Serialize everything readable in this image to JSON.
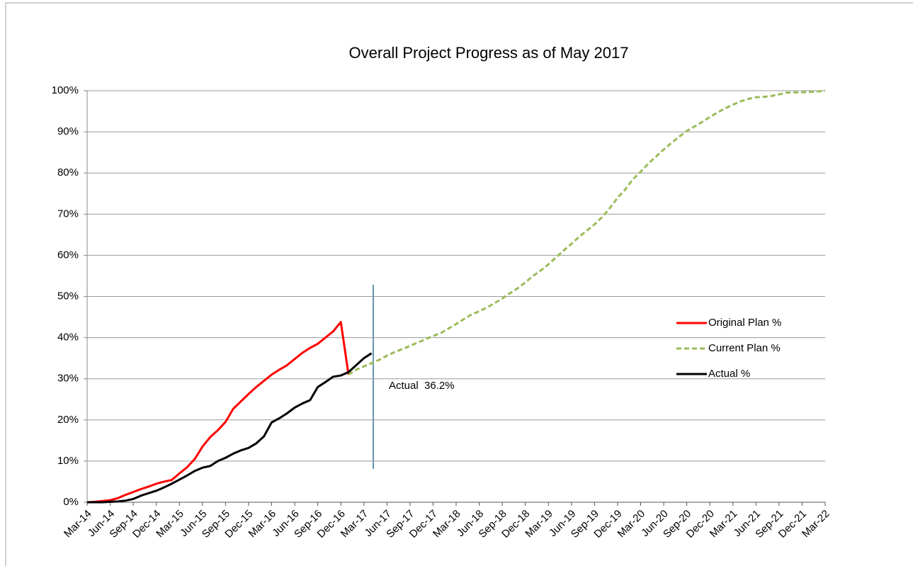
{
  "chart_data": {
    "type": "line",
    "title": "Overall Project Progress as of May 2017",
    "categories": [
      "Mar-14",
      null,
      null,
      "Jun-14",
      null,
      null,
      "Sep-14",
      null,
      null,
      "Dec-14",
      null,
      null,
      "Mar-15",
      null,
      null,
      "Jun-15",
      null,
      null,
      "Sep-15",
      null,
      null,
      "Dec-15",
      null,
      null,
      "Mar-16",
      null,
      null,
      "Jun-16",
      null,
      null,
      "Sep-16",
      null,
      null,
      "Dec-16",
      null,
      null,
      "Mar-17",
      null,
      null,
      "Jun-17",
      null,
      null,
      "Sep-17",
      null,
      null,
      "Dec-17",
      null,
      null,
      "Mar-18",
      null,
      null,
      "Jun-18",
      null,
      null,
      "Sep-18",
      null,
      null,
      "Dec-18",
      null,
      null,
      "Mar-19",
      null,
      null,
      "Jun-19",
      null,
      null,
      "Sep-19",
      null,
      null,
      "Dec-19",
      null,
      null,
      "Mar-20",
      null,
      null,
      "Jun-20",
      null,
      null,
      "Sep-20",
      null,
      null,
      "Dec-20",
      null,
      null,
      "Mar-21",
      null,
      null,
      "Jun-21",
      null,
      null,
      "Sep-21",
      null,
      null,
      "Dec-21",
      null,
      null,
      "Mar-22"
    ],
    "series": [
      {
        "name": "Original Plan %",
        "color": "#ff0000",
        "dashed": false,
        "values": [
          0,
          0.1,
          0.3,
          0.5,
          1.0,
          1.8,
          2.5,
          3.2,
          3.8,
          4.5,
          5.0,
          5.4,
          7.0,
          8.5,
          10.5,
          13.5,
          15.8,
          17.5,
          19.5,
          22.7,
          24.5,
          26.3,
          28.0,
          29.5,
          31.0,
          32.2,
          33.3,
          34.8,
          36.3,
          37.5,
          38.5,
          40.0,
          41.5,
          43.8,
          31.0,
          null,
          null,
          null,
          null,
          null,
          null,
          null,
          null,
          null,
          null,
          null,
          null,
          null,
          null,
          null,
          null,
          null,
          null,
          null,
          null,
          null,
          null,
          null,
          null,
          null,
          null,
          null,
          null,
          null,
          null,
          null,
          null,
          null,
          null,
          null,
          null,
          null,
          null,
          null,
          null,
          null,
          null,
          null,
          null,
          null,
          null,
          null,
          null,
          null,
          null,
          null,
          null,
          null,
          null,
          null,
          null,
          null,
          null,
          null,
          null,
          null,
          null
        ]
      },
      {
        "name": "Current Plan %",
        "color": "#9bbb59",
        "dashed": true,
        "values": [
          null,
          null,
          null,
          null,
          null,
          null,
          null,
          null,
          null,
          null,
          null,
          null,
          null,
          null,
          null,
          null,
          null,
          null,
          null,
          null,
          null,
          null,
          null,
          null,
          null,
          null,
          null,
          null,
          null,
          null,
          null,
          null,
          null,
          null,
          31.0,
          32.2,
          33.0,
          33.8,
          34.6,
          35.6,
          36.5,
          37.2,
          38.0,
          38.8,
          39.6,
          40.4,
          41.1,
          42.2,
          43.3,
          44.5,
          45.6,
          46.4,
          47.3,
          48.4,
          49.5,
          50.8,
          52.0,
          53.4,
          55.0,
          56.3,
          57.8,
          59.5,
          61.2,
          62.8,
          64.5,
          66.0,
          67.5,
          69.3,
          71.5,
          74.0,
          76.0,
          78.5,
          80.3,
          82.3,
          84.0,
          85.7,
          87.3,
          88.8,
          90.2,
          91.3,
          92.4,
          93.6,
          94.7,
          95.7,
          96.6,
          97.4,
          98.0,
          98.4,
          98.5,
          98.7,
          99.1,
          99.5,
          99.6,
          99.6,
          99.7,
          99.8,
          100
        ]
      },
      {
        "name": "Actual %",
        "color": "#000000",
        "dashed": false,
        "values": [
          0,
          0,
          0,
          0.1,
          0.2,
          0.4,
          0.8,
          1.6,
          2.2,
          2.8,
          3.6,
          4.5,
          5.5,
          6.5,
          7.6,
          8.4,
          8.8,
          10.0,
          10.8,
          11.8,
          12.6,
          13.2,
          14.3,
          16.0,
          19.4,
          20.4,
          21.6,
          23.0,
          24.0,
          24.8,
          28.0,
          29.2,
          30.5,
          30.8,
          31.6,
          33.3,
          35.0,
          36.2,
          null,
          null,
          null,
          null,
          null,
          null,
          null,
          null,
          null,
          null,
          null,
          null,
          null,
          null,
          null,
          null,
          null,
          null,
          null,
          null,
          null,
          null,
          null,
          null,
          null,
          null,
          null,
          null,
          null,
          null,
          null,
          null,
          null,
          null,
          null,
          null,
          null,
          null,
          null,
          null,
          null,
          null,
          null,
          null,
          null,
          null,
          null,
          null,
          null,
          null,
          null,
          null,
          null,
          null,
          null,
          null,
          null,
          null,
          null
        ]
      }
    ],
    "ylim": [
      0,
      100
    ],
    "yticks": [
      {
        "value": 0,
        "label": "0%"
      },
      {
        "value": 10,
        "label": "10%"
      },
      {
        "value": 20,
        "label": "20%"
      },
      {
        "value": 30,
        "label": "30%"
      },
      {
        "value": 40,
        "label": "40%"
      },
      {
        "value": 50,
        "label": "50%"
      },
      {
        "value": 60,
        "label": "60%"
      },
      {
        "value": 70,
        "label": "70%"
      },
      {
        "value": 80,
        "label": "80%"
      },
      {
        "value": 90,
        "label": "90%"
      },
      {
        "value": 100,
        "label": "100%"
      }
    ],
    "grid": true,
    "legend": "right",
    "annotation": "Actual  36.2%"
  }
}
